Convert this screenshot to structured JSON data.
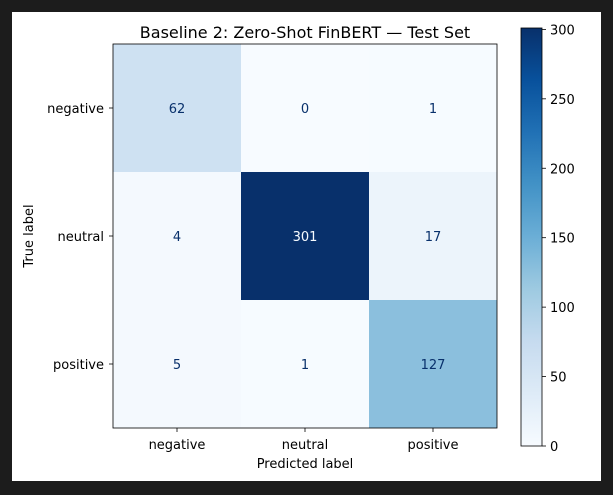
{
  "chart_data": {
    "type": "heatmap",
    "title": "Baseline 2: Zero-Shot FinBERT — Test Set",
    "xlabel": "Predicted label",
    "ylabel": "True label",
    "x_categories": [
      "negative",
      "neutral",
      "positive"
    ],
    "y_categories": [
      "negative",
      "neutral",
      "positive"
    ],
    "values": [
      [
        62,
        0,
        1
      ],
      [
        4,
        301,
        17
      ],
      [
        5,
        1,
        127
      ]
    ],
    "colormap": "Blues",
    "colorbar": {
      "range": [
        0,
        301
      ],
      "ticks": [
        0,
        50,
        100,
        150,
        200,
        250,
        300
      ]
    }
  }
}
